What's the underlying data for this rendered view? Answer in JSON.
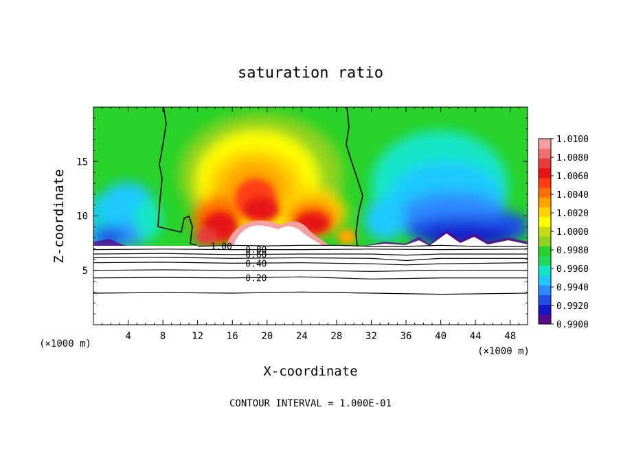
{
  "chart_data": {
    "type": "heatmap",
    "title": "saturation ratio",
    "xlabel": "X-coordinate",
    "ylabel": "Z-coordinate",
    "x_unit": "(×1000 m)",
    "y_unit": "(×1000 m)",
    "xlim": [
      0,
      50
    ],
    "ylim": [
      0,
      20
    ],
    "x_ticks": [
      "4",
      "8",
      "12",
      "16",
      "20",
      "24",
      "28",
      "32",
      "36",
      "40",
      "44",
      "48"
    ],
    "y_ticks": [
      "5",
      "10",
      "15"
    ],
    "footer": "CONTOUR INTERVAL = 1.000E-01",
    "colorbar": {
      "min": 0.99,
      "max": 1.01,
      "ticks": [
        "0.9900",
        "0.9920",
        "0.9940",
        "0.9960",
        "0.9980",
        "1.0000",
        "1.0020",
        "1.0040",
        "1.0060",
        "1.0080",
        "1.0100"
      ],
      "colors": [
        "#5a0a8c",
        "#1414c8",
        "#1e50e6",
        "#2d8cff",
        "#1ec8ff",
        "#14e6c8",
        "#1edc5a",
        "#28d228",
        "#8cd21e",
        "#c8dc14",
        "#ffff00",
        "#ffd200",
        "#ffa500",
        "#ff6e00",
        "#ff3c14",
        "#e61414",
        "#e63c3c",
        "#f06e6e",
        "#f5a0a0"
      ]
    },
    "contour_levels_labeled": [
      "1.00",
      "0.80",
      "0.60",
      "0.40",
      "0.20"
    ],
    "contours": [
      {
        "label": "1.00",
        "points": [
          [
            12,
            7.2
          ],
          [
            16,
            7.3
          ],
          [
            20,
            7.25
          ],
          [
            24,
            7.3
          ],
          [
            28,
            7.3
          ],
          [
            32,
            7.2
          ],
          [
            36,
            7.2
          ],
          [
            40,
            7.3
          ],
          [
            44,
            7.2
          ],
          [
            50,
            7.2
          ]
        ]
      },
      {
        "label": "0.80",
        "points": [
          [
            0,
            6.9
          ],
          [
            8,
            6.95
          ],
          [
            16,
            6.9
          ],
          [
            24,
            6.9
          ],
          [
            32,
            6.95
          ],
          [
            40,
            6.9
          ],
          [
            50,
            6.95
          ]
        ]
      },
      {
        "label": "0.60",
        "points": [
          [
            0,
            6.5
          ],
          [
            8,
            6.55
          ],
          [
            16,
            6.45
          ],
          [
            24,
            6.5
          ],
          [
            32,
            6.5
          ],
          [
            36,
            6.4
          ],
          [
            40,
            6.5
          ],
          [
            50,
            6.5
          ]
        ]
      },
      {
        "label": "",
        "points": [
          [
            0,
            6.15
          ],
          [
            8,
            6.2
          ],
          [
            16,
            6.1
          ],
          [
            24,
            6.15
          ],
          [
            32,
            6.1
          ],
          [
            36,
            5.9
          ],
          [
            40,
            6.1
          ],
          [
            50,
            6.1
          ]
        ]
      },
      {
        "label": "0.40",
        "points": [
          [
            0,
            5.7
          ],
          [
            8,
            5.75
          ],
          [
            16,
            5.65
          ],
          [
            24,
            5.7
          ],
          [
            32,
            5.6
          ],
          [
            36,
            5.5
          ],
          [
            40,
            5.6
          ],
          [
            50,
            5.7
          ]
        ]
      },
      {
        "label": "",
        "points": [
          [
            0,
            5.0
          ],
          [
            8,
            5.05
          ],
          [
            16,
            5.0
          ],
          [
            24,
            5.0
          ],
          [
            32,
            4.9
          ],
          [
            40,
            5.0
          ],
          [
            50,
            5.0
          ]
        ]
      },
      {
        "label": "0.20",
        "points": [
          [
            0,
            4.3
          ],
          [
            8,
            4.35
          ],
          [
            16,
            4.3
          ],
          [
            24,
            4.4
          ],
          [
            28,
            4.3
          ],
          [
            32,
            4.2
          ],
          [
            40,
            4.3
          ],
          [
            50,
            4.3
          ]
        ]
      },
      {
        "label": "",
        "points": [
          [
            0,
            2.9
          ],
          [
            8,
            2.95
          ],
          [
            16,
            2.9
          ],
          [
            24,
            3.0
          ],
          [
            32,
            2.9
          ],
          [
            40,
            2.8
          ],
          [
            50,
            2.9
          ]
        ]
      }
    ]
  }
}
